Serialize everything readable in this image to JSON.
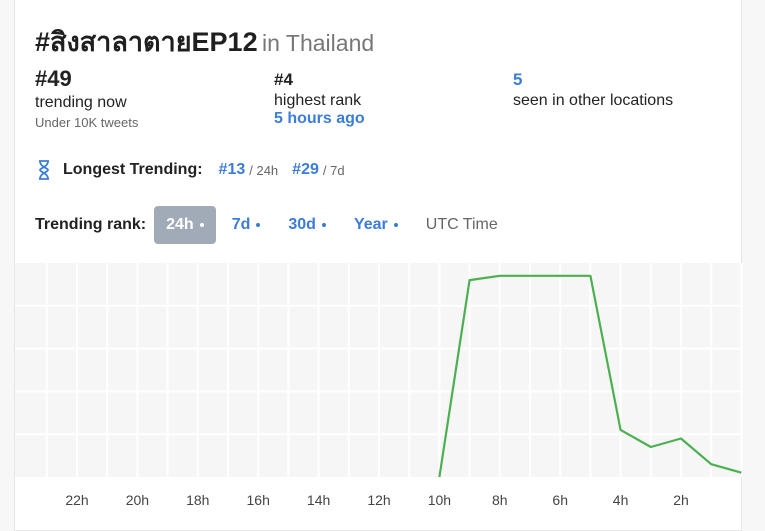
{
  "header": {
    "hashtag": "#สิงสาลาตายEP12",
    "location": "in Thailand"
  },
  "stats": {
    "current": {
      "value": "#49",
      "label": "trending now",
      "sub": "Under 10K tweets"
    },
    "highest": {
      "value": "#4",
      "label": "highest rank",
      "time": "5 hours ago"
    },
    "locations": {
      "value": "5",
      "label": "seen in other locations"
    }
  },
  "longest": {
    "title": "Longest Trending:",
    "items": [
      {
        "rank": "#13",
        "period": "/ 24h"
      },
      {
        "rank": "#29",
        "period": "/ 7d"
      }
    ]
  },
  "rank_tabs": {
    "label": "Trending rank:",
    "tabs": [
      "24h",
      "7d",
      "30d",
      "Year"
    ],
    "active": "24h",
    "utc": "UTC Time"
  },
  "colors": {
    "accent": "#3b7dd8",
    "line": "#4caf50",
    "tab_active_bg": "#a0abb7"
  },
  "chart_data": {
    "type": "line",
    "title": "",
    "xlabel": "",
    "ylabel": "",
    "tick_labels": [
      "22h",
      "20h",
      "18h",
      "16h",
      "14h",
      "12h",
      "10h",
      "8h",
      "6h",
      "4h",
      "2h"
    ],
    "grid": true,
    "series": [
      {
        "values": [
          {
            "x": 10.0,
            "y": 0
          },
          {
            "x": 9.0,
            "y": 0.92
          },
          {
            "x": 8.0,
            "y": 0.94
          },
          {
            "x": 7.0,
            "y": 0.94
          },
          {
            "x": 6.0,
            "y": 0.94
          },
          {
            "x": 5.0,
            "y": 0.94
          },
          {
            "x": 4.0,
            "y": 0.22
          },
          {
            "x": 3.0,
            "y": 0.14
          },
          {
            "x": 2.0,
            "y": 0.18
          },
          {
            "x": 1.0,
            "y": 0.06
          },
          {
            "x": 0.0,
            "y": 0.02
          }
        ]
      }
    ]
  }
}
